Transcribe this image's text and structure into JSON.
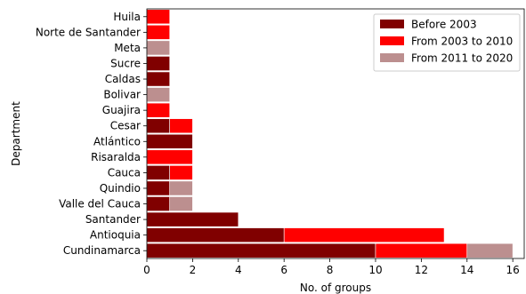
{
  "chart_data": {
    "type": "bar",
    "orientation": "horizontal",
    "stacked": true,
    "xlabel": "No. of groups",
    "ylabel": "Department",
    "xlim": [
      0,
      16.5
    ],
    "xticks": [
      0,
      2,
      4,
      6,
      8,
      10,
      12,
      14,
      16
    ],
    "grid": false,
    "legend_position": "top-right",
    "categories": [
      "Cundinamarca",
      "Antioquia",
      "Santander",
      "Valle del Cauca",
      "Quindio",
      "Cauca",
      "Risaralda",
      "Atlántico",
      "Cesar",
      "Guajira",
      "Bolivar",
      "Caldas",
      "Sucre",
      "Meta",
      "Norte de Santander",
      "Huila"
    ],
    "series": [
      {
        "name": "Before 2003",
        "color": "#800000",
        "values": [
          10,
          6,
          4,
          1,
          1,
          1,
          0,
          2,
          1,
          0,
          0,
          1,
          1,
          0,
          0,
          0
        ]
      },
      {
        "name": "From 2003 to 2010",
        "color": "#ff0000",
        "values": [
          4,
          7,
          0,
          0,
          0,
          1,
          2,
          0,
          1,
          1,
          0,
          0,
          0,
          0,
          1,
          1
        ]
      },
      {
        "name": "From 2011 to 2020",
        "color": "#bc8f8f",
        "values": [
          2,
          0,
          0,
          1,
          1,
          0,
          0,
          0,
          0,
          0,
          1,
          0,
          0,
          1,
          0,
          0
        ]
      }
    ]
  }
}
